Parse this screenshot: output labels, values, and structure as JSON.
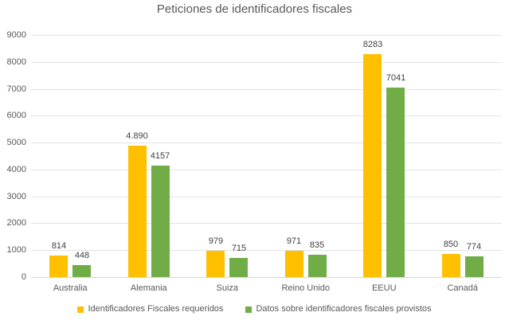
{
  "chart_data": {
    "type": "bar",
    "title": "Peticiones de identificadores fiscales",
    "categories": [
      "Australia",
      "Alemania",
      "Suiza",
      "Reino Unido",
      "EEUU",
      "Canadá"
    ],
    "series": [
      {
        "name": "Identificadores Fiscales requeridos",
        "color": "#FFC000",
        "values": [
          814,
          4890,
          979,
          971,
          8283,
          850
        ],
        "labels": [
          "814",
          "4.890",
          "979",
          "971",
          "8283",
          "850"
        ]
      },
      {
        "name": "Datos sobre identificadores fiscales provistos",
        "color": "#70AD47",
        "values": [
          448,
          4157,
          715,
          835,
          7041,
          774
        ],
        "labels": [
          "448",
          "4157",
          "715",
          "835",
          "7041",
          "774"
        ]
      }
    ],
    "y_axis": {
      "min": 0,
      "max": 9000,
      "step": 1000,
      "tick_labels": [
        "0",
        "1000",
        "2000",
        "3000",
        "4000",
        "5000",
        "6000",
        "7000",
        "8000",
        "9000"
      ]
    },
    "grid": true,
    "legend_position": "bottom"
  },
  "colors": {
    "title_text": "#595959",
    "axis_text": "#595959",
    "data_label_text": "#404040",
    "gridline": "#E3E3E3",
    "axis_line": "#D6D6D6",
    "background": "#FFFFFF"
  }
}
